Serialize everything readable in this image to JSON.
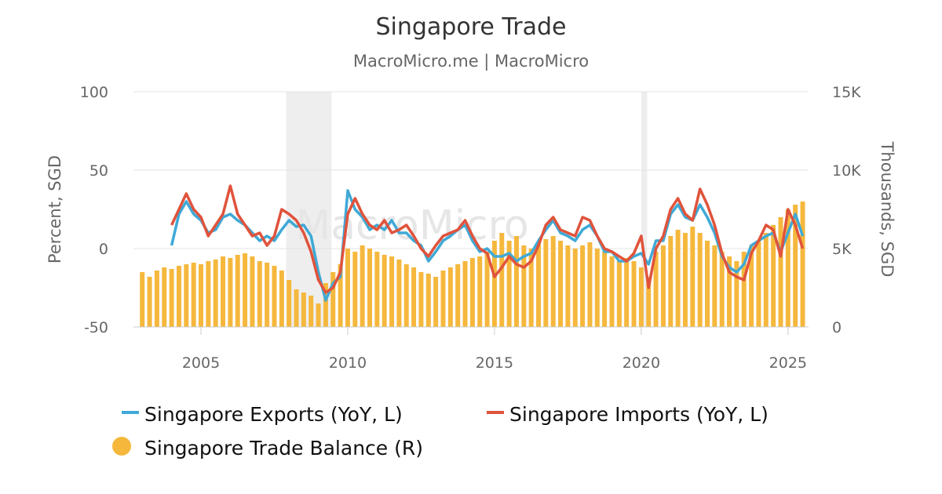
{
  "chart_data": {
    "type": "line",
    "title": "Singapore Trade",
    "subtitle": "MacroMicro.me | MacroMicro",
    "watermark": "MacroMicro",
    "ylabel_left": "Percent, SGD",
    "ylabel_right": "Thousands, SGD",
    "ylim_left": [
      -50,
      100
    ],
    "ylim_right": [
      0,
      15000
    ],
    "yticks_left": [
      "100",
      "50",
      "0",
      "-50"
    ],
    "yticks_right": [
      "15K",
      "10K",
      "5K",
      "0"
    ],
    "xlim": [
      2002.7,
      2025.7
    ],
    "xticks": [
      "2005",
      "2010",
      "2015",
      "2020",
      "2025"
    ],
    "grid": true,
    "legend_position": "bottom",
    "recession_bands": [
      [
        2007.9,
        2009.45
      ],
      [
        2020.0,
        2020.2
      ]
    ],
    "colors": {
      "exports": "#3fa9d6",
      "imports": "#e0533c",
      "balance": "#f5b83d",
      "recession": "#eeeeee"
    },
    "legend": [
      {
        "label": "Singapore Exports (YoY, L)",
        "color": "#3fa9d6",
        "shape": "line"
      },
      {
        "label": "Singapore Imports (YoY, L)",
        "color": "#e0533c",
        "shape": "line"
      },
      {
        "label": "Singapore Trade Balance (R)",
        "color": "#f5b83d",
        "shape": "circle"
      }
    ],
    "series": [
      {
        "name": "Singapore Exports (YoY, L)",
        "axis": "left",
        "x": [
          2004.0,
          2004.25,
          2004.5,
          2004.75,
          2005.0,
          2005.25,
          2005.5,
          2005.75,
          2006.0,
          2006.25,
          2006.5,
          2006.75,
          2007.0,
          2007.25,
          2007.5,
          2007.75,
          2008.0,
          2008.25,
          2008.5,
          2008.75,
          2009.0,
          2009.25,
          2009.5,
          2009.75,
          2010.0,
          2010.25,
          2010.5,
          2010.75,
          2011.0,
          2011.25,
          2011.5,
          2011.75,
          2012.0,
          2012.25,
          2012.5,
          2012.75,
          2013.0,
          2013.25,
          2013.5,
          2013.75,
          2014.0,
          2014.25,
          2014.5,
          2014.75,
          2015.0,
          2015.25,
          2015.5,
          2015.75,
          2016.0,
          2016.25,
          2016.5,
          2016.75,
          2017.0,
          2017.25,
          2017.5,
          2017.75,
          2018.0,
          2018.25,
          2018.5,
          2018.75,
          2019.0,
          2019.25,
          2019.5,
          2019.75,
          2020.0,
          2020.25,
          2020.5,
          2020.75,
          2021.0,
          2021.25,
          2021.5,
          2021.75,
          2022.0,
          2022.25,
          2022.5,
          2022.75,
          2023.0,
          2023.25,
          2023.5,
          2023.75,
          2024.0,
          2024.25,
          2024.5,
          2024.75,
          2025.0,
          2025.25,
          2025.5
        ],
        "y": [
          2,
          22,
          30,
          22,
          18,
          10,
          12,
          20,
          22,
          18,
          15,
          10,
          5,
          8,
          5,
          12,
          18,
          14,
          15,
          8,
          -15,
          -33,
          -22,
          -18,
          37,
          25,
          20,
          12,
          15,
          12,
          18,
          10,
          10,
          5,
          2,
          -8,
          -2,
          5,
          8,
          12,
          15,
          5,
          -2,
          0,
          -5,
          -5,
          -3,
          -8,
          -5,
          -3,
          5,
          12,
          18,
          10,
          8,
          5,
          12,
          15,
          8,
          -2,
          -2,
          -8,
          -8,
          -5,
          -3,
          -10,
          5,
          5,
          22,
          28,
          20,
          18,
          28,
          20,
          10,
          -5,
          -12,
          -15,
          -10,
          2,
          5,
          8,
          10,
          -2,
          10,
          22,
          8
        ]
      },
      {
        "name": "Singapore Imports (YoY, L)",
        "axis": "left",
        "x": [
          2004.0,
          2004.25,
          2004.5,
          2004.75,
          2005.0,
          2005.25,
          2005.5,
          2005.75,
          2006.0,
          2006.25,
          2006.5,
          2006.75,
          2007.0,
          2007.25,
          2007.5,
          2007.75,
          2008.0,
          2008.25,
          2008.5,
          2008.75,
          2009.0,
          2009.25,
          2009.5,
          2009.75,
          2010.0,
          2010.25,
          2010.5,
          2010.75,
          2011.0,
          2011.25,
          2011.5,
          2011.75,
          2012.0,
          2012.25,
          2012.5,
          2012.75,
          2013.0,
          2013.25,
          2013.5,
          2013.75,
          2014.0,
          2014.25,
          2014.5,
          2014.75,
          2015.0,
          2015.25,
          2015.5,
          2015.75,
          2016.0,
          2016.25,
          2016.5,
          2016.75,
          2017.0,
          2017.25,
          2017.5,
          2017.75,
          2018.0,
          2018.25,
          2018.5,
          2018.75,
          2019.0,
          2019.25,
          2019.5,
          2019.75,
          2020.0,
          2020.25,
          2020.5,
          2020.75,
          2021.0,
          2021.25,
          2021.5,
          2021.75,
          2022.0,
          2022.25,
          2022.5,
          2022.75,
          2023.0,
          2023.25,
          2023.5,
          2023.75,
          2024.0,
          2024.25,
          2024.5,
          2024.75,
          2025.0,
          2025.25,
          2025.5
        ],
        "y": [
          15,
          25,
          35,
          25,
          20,
          8,
          15,
          22,
          40,
          22,
          15,
          8,
          10,
          2,
          8,
          25,
          22,
          18,
          10,
          -2,
          -20,
          -28,
          -25,
          -15,
          22,
          32,
          22,
          15,
          12,
          18,
          10,
          12,
          15,
          8,
          0,
          -5,
          2,
          8,
          10,
          12,
          18,
          8,
          0,
          -3,
          -18,
          -12,
          -5,
          -10,
          -12,
          -8,
          2,
          15,
          20,
          12,
          10,
          8,
          20,
          18,
          8,
          0,
          -2,
          -5,
          -8,
          -3,
          8,
          -25,
          0,
          8,
          25,
          32,
          22,
          18,
          38,
          28,
          15,
          -3,
          -15,
          -18,
          -20,
          -3,
          5,
          15,
          12,
          -5,
          25,
          15,
          0
        ]
      },
      {
        "name": "Singapore Trade Balance (R)",
        "axis": "right",
        "type": "bar",
        "x": [
          2003.0,
          2003.25,
          2003.5,
          2003.75,
          2004.0,
          2004.25,
          2004.5,
          2004.75,
          2005.0,
          2005.25,
          2005.5,
          2005.75,
          2006.0,
          2006.25,
          2006.5,
          2006.75,
          2007.0,
          2007.25,
          2007.5,
          2007.75,
          2008.0,
          2008.25,
          2008.5,
          2008.75,
          2009.0,
          2009.25,
          2009.5,
          2009.75,
          2010.0,
          2010.25,
          2010.5,
          2010.75,
          2011.0,
          2011.25,
          2011.5,
          2011.75,
          2012.0,
          2012.25,
          2012.5,
          2012.75,
          2013.0,
          2013.25,
          2013.5,
          2013.75,
          2014.0,
          2014.25,
          2014.5,
          2014.75,
          2015.0,
          2015.25,
          2015.5,
          2015.75,
          2016.0,
          2016.25,
          2016.5,
          2016.75,
          2017.0,
          2017.25,
          2017.5,
          2017.75,
          2018.0,
          2018.25,
          2018.5,
          2018.75,
          2019.0,
          2019.25,
          2019.5,
          2019.75,
          2020.0,
          2020.25,
          2020.5,
          2020.75,
          2021.0,
          2021.25,
          2021.5,
          2021.75,
          2022.0,
          2022.25,
          2022.5,
          2022.75,
          2023.0,
          2023.25,
          2023.5,
          2023.75,
          2024.0,
          2024.25,
          2024.5,
          2024.75,
          2025.0,
          2025.25,
          2025.5
        ],
        "y": [
          3500,
          3200,
          3600,
          3800,
          3700,
          3900,
          4000,
          4100,
          4000,
          4200,
          4300,
          4500,
          4400,
          4600,
          4700,
          4500,
          4200,
          4100,
          3900,
          3600,
          3000,
          2400,
          2200,
          2000,
          1500,
          2800,
          3500,
          4000,
          5000,
          4800,
          5200,
          5000,
          4800,
          4600,
          4500,
          4300,
          4000,
          3800,
          3500,
          3400,
          3200,
          3600,
          3800,
          4000,
          4200,
          4400,
          4500,
          4800,
          5500,
          6000,
          5500,
          5800,
          5200,
          5000,
          5400,
          5600,
          5800,
          5500,
          5200,
          5000,
          5200,
          5400,
          5000,
          4800,
          4500,
          4200,
          4400,
          4200,
          3800,
          3200,
          4800,
          5200,
          5800,
          6200,
          6000,
          6400,
          6000,
          5500,
          5200,
          4800,
          4500,
          4200,
          4800,
          5200,
          5500,
          6000,
          6500,
          7000,
          7500,
          7800,
          8000
        ]
      }
    ]
  }
}
